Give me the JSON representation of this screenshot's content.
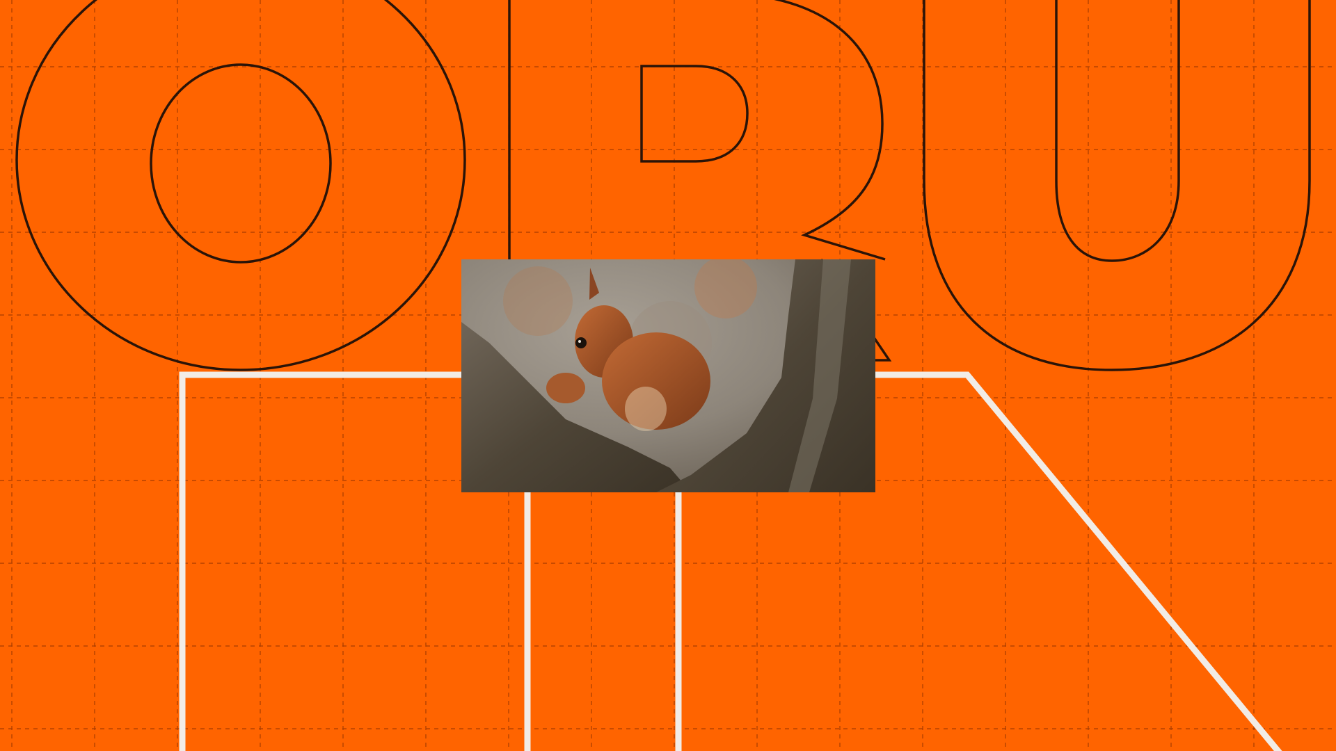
{
  "background_color": "#ff6400",
  "grid_color": "#8a2f00",
  "outline_top_color": "#2a1408",
  "outline_bottom_color": "#f2ece6",
  "outline_top_letters": [
    "O",
    "R",
    "U"
  ],
  "outline_bottom_shapes": [
    "letter-stem-left",
    "letter-stem-middle",
    "diagonal-stroke"
  ],
  "photo": {
    "subject": "squirrel-on-tree",
    "palette": [
      "#8e8a82",
      "#b85a2c",
      "#5c4d3c",
      "#7a4a2a"
    ]
  }
}
